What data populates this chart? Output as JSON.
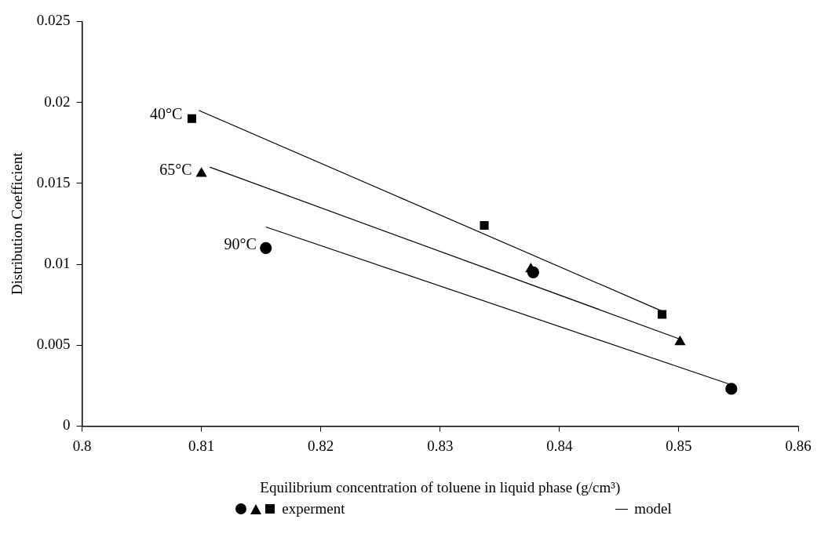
{
  "chart_data": {
    "type": "scatter",
    "xlabel": "Equilibrium concentration of toluene in liquid phase (g/cm³)",
    "ylabel": "Distribution Coefficient",
    "xlim": [
      0.8,
      0.86
    ],
    "xticks": [
      0.8,
      0.81,
      0.82,
      0.83,
      0.84,
      0.85,
      0.86
    ],
    "ylim": [
      0,
      0.025
    ],
    "yticks": [
      0,
      0.005,
      0.01,
      0.015,
      0.02,
      0.025
    ],
    "grid": false,
    "legend": "bottom",
    "annotations": [
      {
        "text": "40°C",
        "x": 0.8092,
        "y": 0.019
      },
      {
        "text": "65°C",
        "x": 0.81,
        "y": 0.0156
      },
      {
        "text": "90°C",
        "x": 0.8154,
        "y": 0.011
      }
    ],
    "series": [
      {
        "marker": "circle",
        "color": "#000000",
        "x": [
          0.8154,
          0.8378,
          0.8544
        ],
        "values": [
          0.011,
          0.0095,
          0.0023
        ]
      },
      {
        "marker": "triangle",
        "color": "#000000",
        "x": [
          0.81,
          0.8376,
          0.8501
        ],
        "values": [
          0.0156,
          0.0097,
          0.0052
        ]
      },
      {
        "name": "experment",
        "marker": "square",
        "color": "#000000",
        "x": [
          0.8092,
          0.8337,
          0.8486
        ],
        "values": [
          0.019,
          0.0124,
          0.0069
        ]
      },
      {
        "name": "model",
        "type": "line",
        "marker": "none",
        "color": "#000000",
        "x": [
          0.8098,
          0.8486
        ],
        "values": [
          0.0195,
          0.0071
        ]
      },
      {
        "type": "line",
        "marker": "none",
        "color": "#000000",
        "x": [
          0.8107,
          0.85
        ],
        "values": [
          0.016,
          0.0054
        ]
      },
      {
        "type": "line",
        "marker": "none",
        "color": "#000000",
        "x": [
          0.8154,
          0.8542
        ],
        "values": [
          0.0123,
          0.0026
        ]
      }
    ]
  }
}
